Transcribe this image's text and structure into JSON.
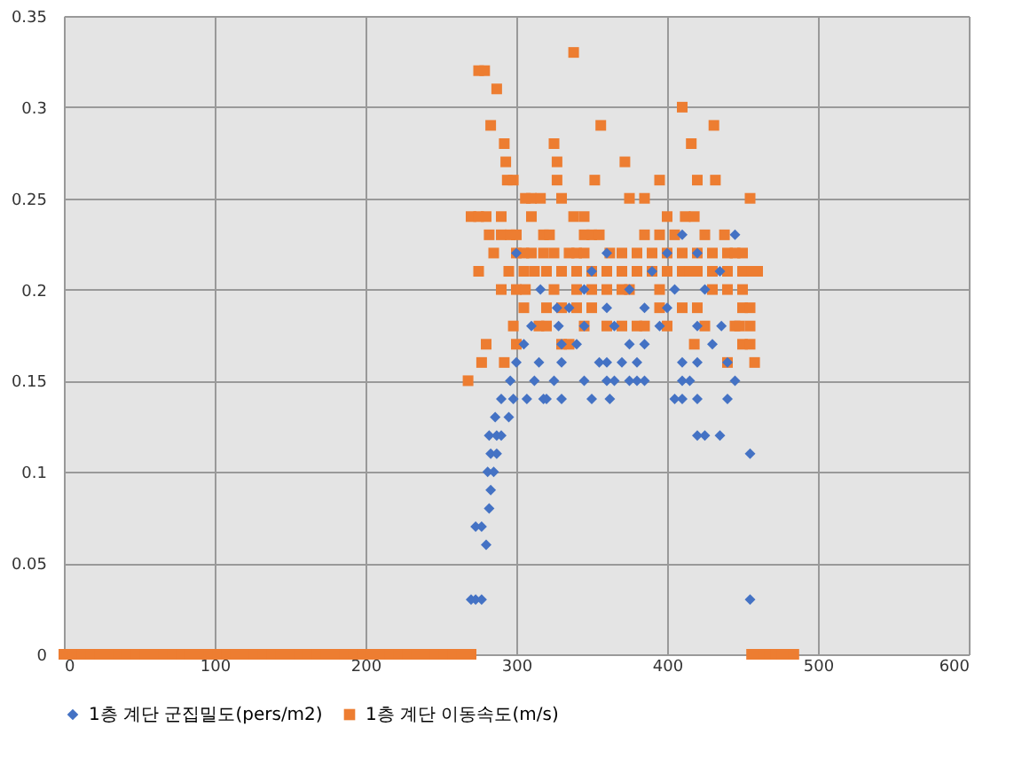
{
  "chart_data": {
    "type": "scatter",
    "xlim": [
      0,
      600
    ],
    "ylim": [
      0,
      0.35
    ],
    "xticks": [
      0,
      100,
      200,
      300,
      400,
      500,
      600
    ],
    "yticks": [
      0,
      0.05,
      0.1,
      0.15,
      0.2,
      0.25,
      0.3,
      0.35
    ],
    "grid": true,
    "legend": "bottom",
    "series": [
      {
        "name": "1층 계단 군집밀도(pers/m2)",
        "color": "#4472c4",
        "marker": "diamond",
        "x": [
          270,
          273,
          277,
          455,
          280,
          273,
          277,
          282,
          283,
          281,
          285,
          283,
          287,
          455,
          282,
          287,
          290,
          420,
          425,
          435,
          286,
          295,
          290,
          298,
          307,
          318,
          320,
          330,
          350,
          362,
          405,
          410,
          420,
          440,
          296,
          312,
          325,
          345,
          360,
          365,
          375,
          380,
          385,
          410,
          415,
          445,
          300,
          315,
          330,
          355,
          360,
          370,
          380,
          410,
          420,
          440,
          305,
          330,
          340,
          375,
          385,
          430,
          310,
          328,
          345,
          365,
          395,
          420,
          436,
          327,
          335,
          360,
          385,
          400,
          316,
          345,
          375,
          405,
          425,
          350,
          390,
          435,
          300,
          360,
          400,
          420,
          410,
          445
        ],
        "values": [
          0.03,
          0.03,
          0.03,
          0.03,
          0.06,
          0.07,
          0.07,
          0.08,
          0.09,
          0.1,
          0.1,
          0.11,
          0.11,
          0.11,
          0.12,
          0.12,
          0.12,
          0.12,
          0.12,
          0.12,
          0.13,
          0.13,
          0.14,
          0.14,
          0.14,
          0.14,
          0.14,
          0.14,
          0.14,
          0.14,
          0.14,
          0.14,
          0.14,
          0.14,
          0.15,
          0.15,
          0.15,
          0.15,
          0.15,
          0.15,
          0.15,
          0.15,
          0.15,
          0.15,
          0.15,
          0.15,
          0.16,
          0.16,
          0.16,
          0.16,
          0.16,
          0.16,
          0.16,
          0.16,
          0.16,
          0.16,
          0.17,
          0.17,
          0.17,
          0.17,
          0.17,
          0.17,
          0.18,
          0.18,
          0.18,
          0.18,
          0.18,
          0.18,
          0.18,
          0.19,
          0.19,
          0.19,
          0.19,
          0.19,
          0.2,
          0.2,
          0.2,
          0.2,
          0.2,
          0.21,
          0.21,
          0.21,
          0.22,
          0.22,
          0.22,
          0.22,
          0.23,
          0.23
        ]
      },
      {
        "name": "1층 계단 이동속도(m/s)",
        "color": "#ed7d31",
        "marker": "square",
        "x": [
          0,
          6,
          12,
          18,
          24,
          30,
          36,
          42,
          48,
          54,
          60,
          66,
          72,
          78,
          84,
          90,
          96,
          102,
          108,
          114,
          120,
          126,
          132,
          138,
          144,
          150,
          156,
          162,
          168,
          174,
          180,
          186,
          192,
          198,
          204,
          210,
          216,
          222,
          228,
          234,
          240,
          246,
          252,
          258,
          264,
          270,
          456,
          460,
          464,
          468,
          472,
          476,
          480,
          484,
          275,
          279,
          338,
          287,
          410,
          283,
          356,
          431,
          292,
          325,
          416,
          293,
          327,
          372,
          294,
          298,
          327,
          352,
          395,
          420,
          432,
          306,
          310,
          316,
          330,
          375,
          385,
          455,
          270,
          275,
          280,
          290,
          310,
          338,
          345,
          400,
          412,
          418,
          282,
          290,
          296,
          300,
          318,
          322,
          345,
          350,
          355,
          385,
          395,
          405,
          425,
          438,
          285,
          300,
          305,
          310,
          318,
          325,
          335,
          340,
          345,
          362,
          370,
          380,
          390,
          400,
          410,
          420,
          430,
          440,
          445,
          450,
          275,
          295,
          305,
          312,
          320,
          330,
          340,
          350,
          360,
          370,
          380,
          390,
          400,
          410,
          415,
          420,
          430,
          440,
          450,
          456,
          460,
          290,
          300,
          306,
          325,
          340,
          350,
          360,
          370,
          375,
          395,
          430,
          440,
          450,
          305,
          320,
          330,
          340,
          350,
          395,
          410,
          420,
          450,
          455,
          298,
          315,
          320,
          345,
          360,
          370,
          380,
          385,
          400,
          425,
          445,
          448,
          455,
          280,
          300,
          330,
          335,
          418,
          450,
          455,
          277,
          292,
          440,
          458,
          268
        ],
        "values": [
          0,
          0,
          0,
          0,
          0,
          0,
          0,
          0,
          0,
          0,
          0,
          0,
          0,
          0,
          0,
          0,
          0,
          0,
          0,
          0,
          0,
          0,
          0,
          0,
          0,
          0,
          0,
          0,
          0,
          0,
          0,
          0,
          0,
          0,
          0,
          0,
          0,
          0,
          0,
          0,
          0,
          0,
          0,
          0,
          0,
          0,
          0,
          0,
          0,
          0,
          0,
          0,
          0,
          0,
          0.32,
          0.32,
          0.33,
          0.31,
          0.3,
          0.29,
          0.29,
          0.29,
          0.28,
          0.28,
          0.28,
          0.27,
          0.27,
          0.27,
          0.26,
          0.26,
          0.26,
          0.26,
          0.26,
          0.26,
          0.26,
          0.25,
          0.25,
          0.25,
          0.25,
          0.25,
          0.25,
          0.25,
          0.24,
          0.24,
          0.24,
          0.24,
          0.24,
          0.24,
          0.24,
          0.24,
          0.24,
          0.24,
          0.23,
          0.23,
          0.23,
          0.23,
          0.23,
          0.23,
          0.23,
          0.23,
          0.23,
          0.23,
          0.23,
          0.23,
          0.23,
          0.23,
          0.22,
          0.22,
          0.22,
          0.22,
          0.22,
          0.22,
          0.22,
          0.22,
          0.22,
          0.22,
          0.22,
          0.22,
          0.22,
          0.22,
          0.22,
          0.22,
          0.22,
          0.22,
          0.22,
          0.22,
          0.21,
          0.21,
          0.21,
          0.21,
          0.21,
          0.21,
          0.21,
          0.21,
          0.21,
          0.21,
          0.21,
          0.21,
          0.21,
          0.21,
          0.21,
          0.21,
          0.21,
          0.21,
          0.21,
          0.21,
          0.21,
          0.2,
          0.2,
          0.2,
          0.2,
          0.2,
          0.2,
          0.2,
          0.2,
          0.2,
          0.2,
          0.2,
          0.2,
          0.2,
          0.19,
          0.19,
          0.19,
          0.19,
          0.19,
          0.19,
          0.19,
          0.19,
          0.19,
          0.19,
          0.18,
          0.18,
          0.18,
          0.18,
          0.18,
          0.18,
          0.18,
          0.18,
          0.18,
          0.18,
          0.18,
          0.18,
          0.18,
          0.17,
          0.17,
          0.17,
          0.17,
          0.17,
          0.17,
          0.17,
          0.16,
          0.16,
          0.16,
          0.16,
          0.15
        ]
      }
    ]
  }
}
